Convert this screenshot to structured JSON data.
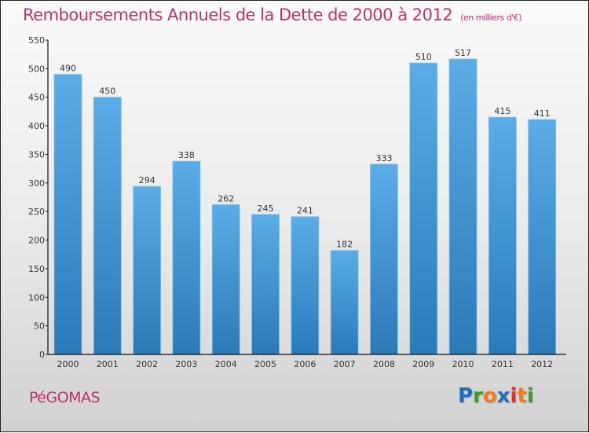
{
  "chart_data": {
    "type": "bar",
    "title": "Remboursements Annuels de la Dette de 2000 à 2012",
    "subtitle": "(en milliers d'€)",
    "xlabel": "",
    "ylabel": "",
    "categories": [
      "2000",
      "2001",
      "2002",
      "2003",
      "2004",
      "2005",
      "2006",
      "2007",
      "2008",
      "2009",
      "2010",
      "2011",
      "2012"
    ],
    "values": [
      490,
      450,
      294,
      338,
      262,
      245,
      241,
      182,
      333,
      510,
      517,
      415,
      411
    ],
    "ylim": [
      0,
      550
    ],
    "yticks": [
      0,
      50,
      100,
      150,
      200,
      250,
      300,
      350,
      400,
      450,
      500,
      550
    ],
    "grid": false,
    "data_labels": true,
    "bar_color_top": "#5aade6",
    "bar_color_bottom": "#2a7ab8"
  },
  "footer": {
    "city": "PéGOMAS",
    "logo": [
      "P",
      "r",
      "o",
      "x",
      "i",
      "t",
      "i"
    ],
    "logo_colors": [
      "#1f6fc0",
      "#3a9a2e",
      "#f07d1a",
      "#1f6fc0",
      "#e03030",
      "#f07d1a",
      "#3a9a2e"
    ]
  },
  "colors": {
    "title": "#c0306a"
  }
}
